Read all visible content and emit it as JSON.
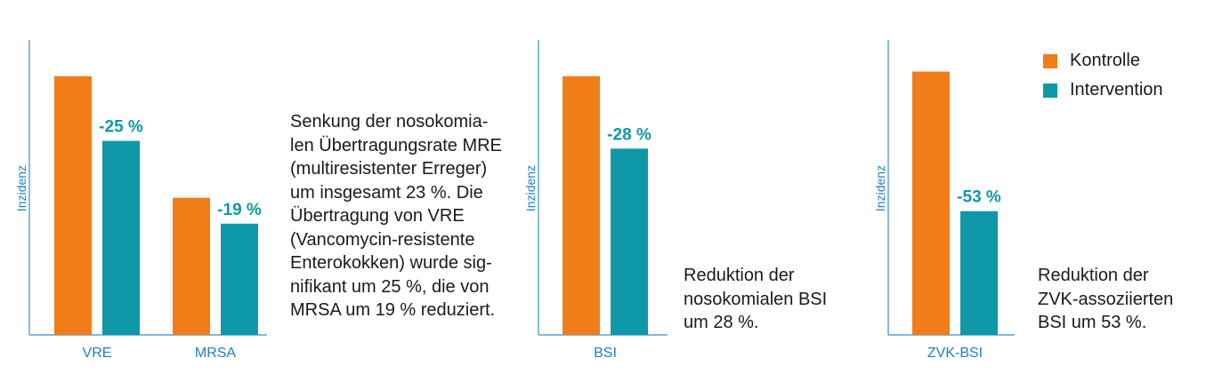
{
  "colors": {
    "kontrolle": "#f07d18",
    "intervention": "#0e98a8",
    "axis": "#3a8fc8",
    "label": "#1f7fc0"
  },
  "legend": [
    {
      "label": "Kontrolle",
      "color": "#f07d18"
    },
    {
      "label": "Intervention",
      "color": "#0e98a8"
    }
  ],
  "notes": {
    "mre": "Senkung der nosokomia-\nlen Übertragungsrate MRE\n(multiresistenter Erreger)\num insgesamt 23 %. Die\nÜbertragung von VRE\n(Vancomycin-resistente\nEnterokokken) wurde sig-\nnifikant um 25 %, die von\nMRSA um 19 % reduziert.",
    "bsi": "Reduktion der\nnosokomialen BSI\num 28 %.",
    "zvk": "Reduktion der\nZVK-assoziierten\nBSI um 53 %."
  },
  "chart_data": [
    {
      "type": "bar",
      "ylabel": "Inzidenz",
      "categories": [
        "VRE",
        "MRSA"
      ],
      "series": [
        {
          "name": "Kontrolle",
          "values": [
            100,
            53
          ]
        },
        {
          "name": "Intervention",
          "values": [
            75,
            43
          ]
        }
      ],
      "data_labels": [
        "-25 %",
        "-19 %"
      ],
      "ylim": [
        0,
        114
      ]
    },
    {
      "type": "bar",
      "ylabel": "Inzidenz",
      "categories": [
        "BSI"
      ],
      "series": [
        {
          "name": "Kontrolle",
          "values": [
            100
          ]
        },
        {
          "name": "Intervention",
          "values": [
            72
          ]
        }
      ],
      "data_labels": [
        "-28 %"
      ],
      "ylim": [
        0,
        114
      ]
    },
    {
      "type": "bar",
      "ylabel": "Inzidenz",
      "categories": [
        "ZVK-BSI"
      ],
      "series": [
        {
          "name": "Kontrolle",
          "values": [
            100
          ]
        },
        {
          "name": "Intervention",
          "values": [
            47
          ]
        }
      ],
      "data_labels": [
        "-53 %"
      ],
      "ylim": [
        0,
        112
      ]
    }
  ]
}
